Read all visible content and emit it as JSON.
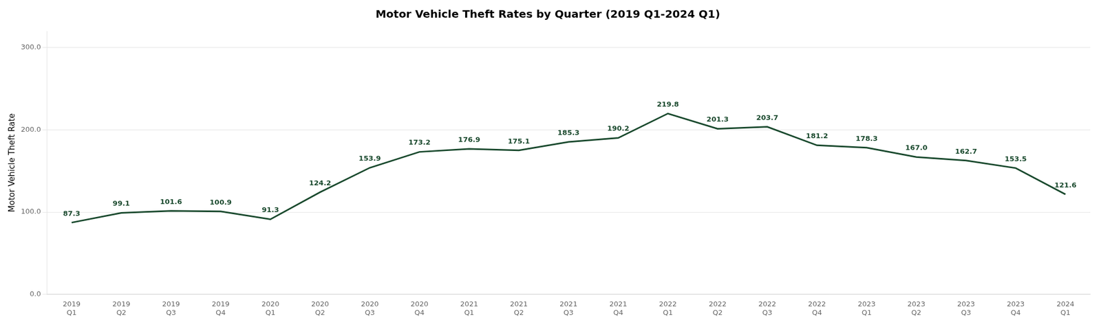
{
  "chart_data": {
    "type": "line",
    "title": "Motor Vehicle Theft Rates by Quarter (2019 Q1-2024 Q1)",
    "ylabel": "Motor Vehicle Theft Rate",
    "categories": [
      "2019\nQ1",
      "2019\nQ2",
      "2019\nQ3",
      "2019\nQ4",
      "2020\nQ1",
      "2020\nQ2",
      "2020\nQ3",
      "2020\nQ4",
      "2021\nQ1",
      "2021\nQ2",
      "2021\nQ3",
      "2021\nQ4",
      "2022\nQ1",
      "2022\nQ2",
      "2022\nQ3",
      "2022\nQ4",
      "2023\nQ1",
      "2023\nQ2",
      "2023\nQ3",
      "2023\nQ4",
      "2024\nQ1"
    ],
    "values": [
      87.3,
      99.1,
      101.6,
      100.9,
      91.3,
      124.2,
      153.9,
      173.2,
      176.9,
      175.1,
      185.3,
      190.2,
      219.8,
      201.3,
      203.7,
      181.2,
      178.3,
      167.0,
      162.7,
      153.5,
      121.6
    ],
    "value_labels": [
      "87.3",
      "99.1",
      "101.6",
      "100.9",
      "91.3",
      "124.2",
      "153.9",
      "173.2",
      "176.9",
      "175.1",
      "185.3",
      "190.2",
      "219.8",
      "201.3",
      "203.7",
      "181.2",
      "178.3",
      "167.0",
      "162.7",
      "153.5",
      "121.6"
    ],
    "color": "#1a4a2e",
    "ylim": [
      0.0,
      320.0
    ],
    "yticks": [
      {
        "value": 0,
        "label": "0.0"
      },
      {
        "value": 100,
        "label": "100.0"
      },
      {
        "value": 200,
        "label": "200.0"
      },
      {
        "value": 300,
        "label": "300.0"
      }
    ],
    "grid": true,
    "data_labels": true
  }
}
